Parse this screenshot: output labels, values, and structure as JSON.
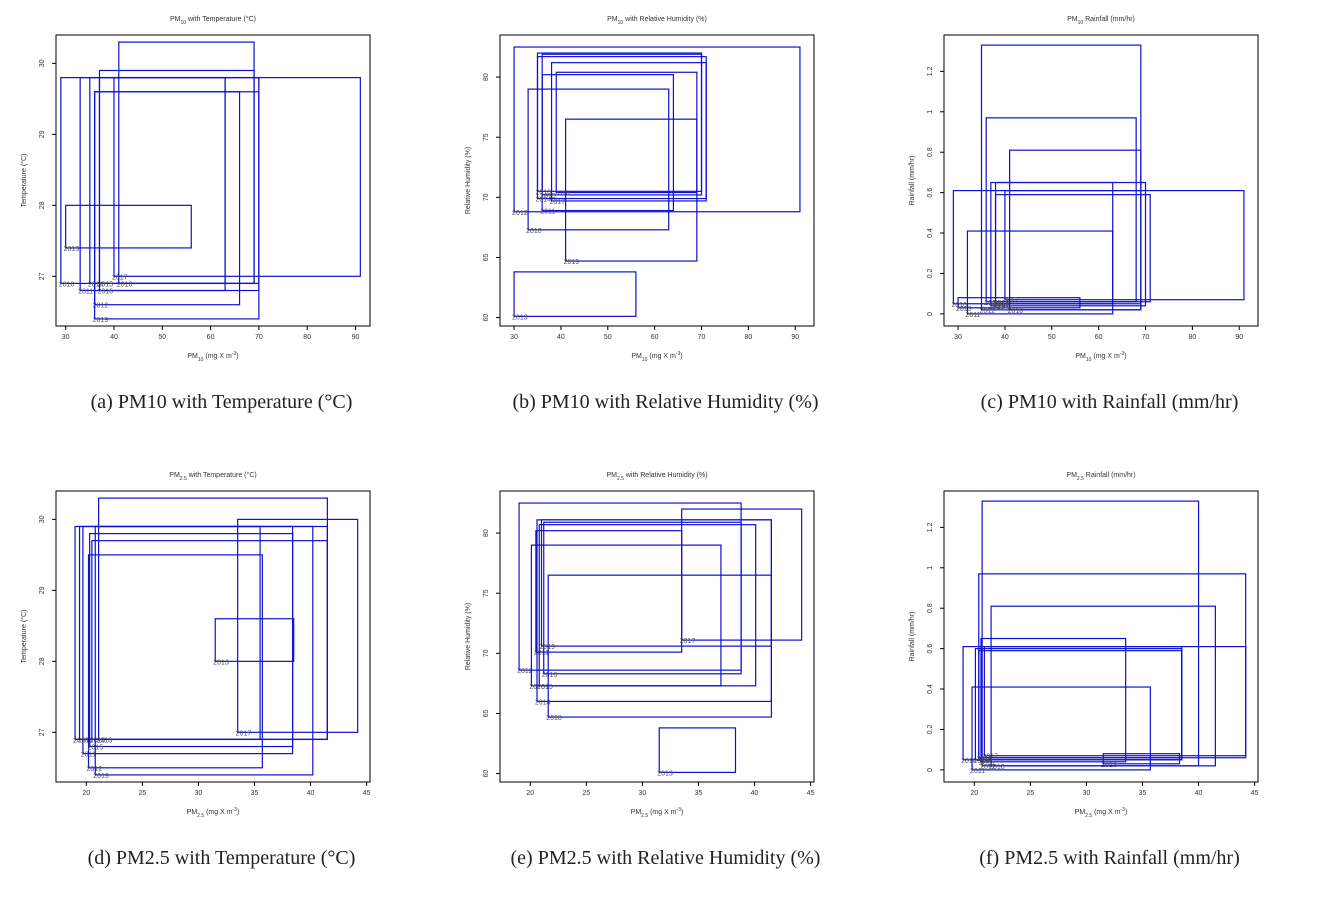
{
  "chart_data": [
    {
      "type": "scatter",
      "title": "PM$_{10}$ with Temperature (°C)",
      "caption": "(a) PM10 with Temperature (°C)",
      "xlabel": "PM$_{10}$ (mg X m$^{-3}$)",
      "ylabel": "Temperature (°C)",
      "xlim": [
        28,
        93
      ],
      "ylim": [
        26.3,
        30.4
      ],
      "xticks": [
        30,
        40,
        50,
        60,
        70,
        80,
        90
      ],
      "yticks": [
        27,
        28,
        29,
        30
      ],
      "series": [
        {
          "label": "2013",
          "x": [
            30,
            56
          ],
          "y": [
            27.4,
            28.0
          ]
        },
        {
          "label": "2010",
          "x": [
            29,
            63
          ],
          "y": [
            26.9,
            29.8
          ]
        },
        {
          "label": "2011",
          "x": [
            33,
            70
          ],
          "y": [
            26.8,
            29.8
          ]
        },
        {
          "label": "2012",
          "x": [
            36,
            66
          ],
          "y": [
            26.6,
            29.6
          ]
        },
        {
          "label": "2014",
          "x": [
            35,
            70
          ],
          "y": [
            26.9,
            29.8
          ]
        },
        {
          "label": "2015",
          "x": [
            37,
            69
          ],
          "y": [
            26.9,
            29.9
          ]
        },
        {
          "label": "2016",
          "x": [
            37,
            63
          ],
          "y": [
            26.8,
            29.8
          ]
        },
        {
          "label": "2017",
          "x": [
            40,
            91
          ],
          "y": [
            27.0,
            29.8
          ]
        },
        {
          "label": "2018",
          "x": [
            41,
            69
          ],
          "y": [
            26.9,
            30.3
          ]
        },
        {
          "label": "2019",
          "x": [
            36,
            70
          ],
          "y": [
            26.4,
            29.6
          ]
        }
      ]
    },
    {
      "type": "scatter",
      "title": "PM$_{10}$ with Relative Humidity (%)",
      "caption": "(b) PM10 with Relative Humidity (%)",
      "xlabel": "PM$_{10}$ (mg X m$^{-3}$)",
      "ylabel": "Relative Humidity (%)",
      "xlim": [
        27,
        94
      ],
      "ylim": [
        59.3,
        83.5
      ],
      "xticks": [
        30,
        40,
        50,
        60,
        70,
        80,
        90
      ],
      "yticks": [
        60,
        65,
        70,
        75,
        80
      ],
      "series": [
        {
          "label": "2013",
          "x": [
            30,
            56
          ],
          "y": [
            60.1,
            63.8
          ]
        },
        {
          "label": "2012",
          "x": [
            30,
            91
          ],
          "y": [
            68.8,
            82.5
          ]
        },
        {
          "label": "2010",
          "x": [
            33,
            63
          ],
          "y": [
            67.3,
            79.0
          ]
        },
        {
          "label": "2011",
          "x": [
            36,
            64
          ],
          "y": [
            68.9,
            80.2
          ]
        },
        {
          "label": "2014",
          "x": [
            35,
            71
          ],
          "y": [
            69.9,
            81.7
          ]
        },
        {
          "label": "2015",
          "x": [
            36,
            70
          ],
          "y": [
            70.2,
            81.9
          ]
        },
        {
          "label": "2016",
          "x": [
            35,
            70
          ],
          "y": [
            70.5,
            82.0
          ]
        },
        {
          "label": "2017",
          "x": [
            38,
            71
          ],
          "y": [
            69.7,
            81.2
          ]
        },
        {
          "label": "2018",
          "x": [
            39,
            69
          ],
          "y": [
            70.4,
            80.4
          ]
        },
        {
          "label": "2019",
          "x": [
            41,
            69
          ],
          "y": [
            64.7,
            76.5
          ]
        }
      ]
    },
    {
      "type": "scatter",
      "title": "PM$_{10}$ Rainfall (mm/hr)",
      "caption": "(c) PM10 with Rainfall (mm/hr)",
      "xlabel": "PM$_{10}$ (mg X m$^{-3}$)",
      "ylabel": "Rainfall (mm/hr)",
      "xlim": [
        27,
        94
      ],
      "ylim": [
        -0.06,
        1.38
      ],
      "xticks": [
        30,
        40,
        50,
        60,
        70,
        80,
        90
      ],
      "yticks": [
        0.0,
        0.2,
        0.4,
        0.6,
        0.8,
        1.0,
        1.2
      ],
      "series": [
        {
          "label": "2010",
          "x": [
            29,
            69
          ],
          "y": [
            0.05,
            0.61
          ]
        },
        {
          "label": "2011",
          "x": [
            32,
            63
          ],
          "y": [
            0.0,
            0.41
          ]
        },
        {
          "label": "2012",
          "x": [
            35,
            69
          ],
          "y": [
            0.02,
            1.33
          ]
        },
        {
          "label": "2013",
          "x": [
            30,
            56
          ],
          "y": [
            0.03,
            0.08
          ]
        },
        {
          "label": "2014",
          "x": [
            36,
            68
          ],
          "y": [
            0.06,
            0.97
          ]
        },
        {
          "label": "2015",
          "x": [
            37,
            70
          ],
          "y": [
            0.04,
            0.65
          ]
        },
        {
          "label": "2016",
          "x": [
            38,
            63
          ],
          "y": [
            0.05,
            0.65
          ]
        },
        {
          "label": "2017",
          "x": [
            40,
            91
          ],
          "y": [
            0.07,
            0.61
          ]
        },
        {
          "label": "2018",
          "x": [
            41,
            69
          ],
          "y": [
            0.02,
            0.81
          ]
        },
        {
          "label": "2019",
          "x": [
            38,
            71
          ],
          "y": [
            0.06,
            0.59
          ]
        }
      ]
    },
    {
      "type": "scatter",
      "title": "PM$_{2.5}$ with Temperature (°C)",
      "caption": "(d) PM2.5 with Temperature (°C)",
      "xlabel": "PM$_{2.5}$ (mg X m$^{-3}$)",
      "ylabel": "Temperature (°C)",
      "xlim": [
        17.3,
        45.3
      ],
      "ylim": [
        26.3,
        30.4
      ],
      "xticks": [
        20,
        25,
        30,
        35,
        40,
        45
      ],
      "yticks": [
        27,
        28,
        29,
        30
      ],
      "series": [
        {
          "label": "2013",
          "x": [
            31.5,
            38.5
          ],
          "y": [
            28.0,
            28.6
          ]
        },
        {
          "label": "2010",
          "x": [
            19,
            35.5
          ],
          "y": [
            26.9,
            29.9
          ]
        },
        {
          "label": "2011",
          "x": [
            19.7,
            38.4
          ],
          "y": [
            26.7,
            29.9
          ]
        },
        {
          "label": "2012",
          "x": [
            20.2,
            35.7
          ],
          "y": [
            26.5,
            29.5
          ]
        },
        {
          "label": "2014",
          "x": [
            19.4,
            41.5
          ],
          "y": [
            26.9,
            29.9
          ]
        },
        {
          "label": "2015",
          "x": [
            20.3,
            38.4
          ],
          "y": [
            26.8,
            29.8
          ]
        },
        {
          "label": "2016",
          "x": [
            20.5,
            41.5
          ],
          "y": [
            26.9,
            29.7
          ]
        },
        {
          "label": "2017",
          "x": [
            33.5,
            44.2
          ],
          "y": [
            27.0,
            30.0
          ]
        },
        {
          "label": "2018",
          "x": [
            21.1,
            41.5
          ],
          "y": [
            26.9,
            30.3
          ]
        },
        {
          "label": "2019",
          "x": [
            20.8,
            40.2
          ],
          "y": [
            26.4,
            29.9
          ]
        }
      ]
    },
    {
      "type": "scatter",
      "title": "PM$_{2.5}$ with Relative Humidity (%)",
      "caption": "(e) PM2.5 with Relative Humidity (%)",
      "xlabel": "PM$_{2.5}$ (mg X m$^{-3}$)",
      "ylabel": "Relative Humidity (%)",
      "xlim": [
        17.3,
        45.3
      ],
      "ylim": [
        59.3,
        83.5
      ],
      "xticks": [
        20,
        25,
        30,
        35,
        40,
        45
      ],
      "yticks": [
        60,
        65,
        70,
        75,
        80
      ],
      "series": [
        {
          "label": "2013",
          "x": [
            31.5,
            38.3
          ],
          "y": [
            60.1,
            63.8
          ]
        },
        {
          "label": "2012",
          "x": [
            19,
            38.8
          ],
          "y": [
            68.6,
            82.5
          ]
        },
        {
          "label": "2010",
          "x": [
            20.1,
            37
          ],
          "y": [
            67.3,
            79.0
          ]
        },
        {
          "label": "2011",
          "x": [
            20.5,
            33.5
          ],
          "y": [
            70.1,
            80.2
          ]
        },
        {
          "label": "2014",
          "x": [
            20.6,
            41.5
          ],
          "y": [
            66.0,
            81.1
          ]
        },
        {
          "label": "2015",
          "x": [
            20.8,
            40.1
          ],
          "y": [
            67.3,
            80.7
          ]
        },
        {
          "label": "2016",
          "x": [
            21.2,
            38.8
          ],
          "y": [
            68.3,
            80.9
          ]
        },
        {
          "label": "2017",
          "x": [
            33.5,
            44.2
          ],
          "y": [
            71.1,
            82.0
          ]
        },
        {
          "label": "2018",
          "x": [
            21.6,
            41.5
          ],
          "y": [
            64.7,
            76.5
          ]
        },
        {
          "label": "2019",
          "x": [
            21.0,
            41.5
          ],
          "y": [
            70.6,
            81.1
          ]
        }
      ]
    },
    {
      "type": "scatter",
      "title": "PM$_{2.5}$ Rainfall (mm/hr)",
      "caption": "(f) PM2.5 with Rainfall (mm/hr)",
      "xlabel": "PM$_{2.5}$ (mg X m$^{-3}$)",
      "ylabel": "Rainfall (mm/hr)",
      "xlim": [
        17.3,
        45.3
      ],
      "ylim": [
        -0.06,
        1.38
      ],
      "xticks": [
        20,
        25,
        30,
        35,
        40,
        45
      ],
      "yticks": [
        0.0,
        0.2,
        0.4,
        0.6,
        0.8,
        1.0,
        1.2
      ],
      "series": [
        {
          "label": "2010",
          "x": [
            19,
            38.5
          ],
          "y": [
            0.05,
            0.61
          ]
        },
        {
          "label": "2011",
          "x": [
            19.8,
            35.7
          ],
          "y": [
            0.0,
            0.41
          ]
        },
        {
          "label": "2012",
          "x": [
            20.7,
            40
          ],
          "y": [
            0.02,
            1.33
          ]
        },
        {
          "label": "2013",
          "x": [
            31.5,
            38.3
          ],
          "y": [
            0.03,
            0.08
          ]
        },
        {
          "label": "2014",
          "x": [
            20.4,
            44.2
          ],
          "y": [
            0.06,
            0.97
          ]
        },
        {
          "label": "2015",
          "x": [
            20.6,
            33.5
          ],
          "y": [
            0.04,
            0.65
          ]
        },
        {
          "label": "2016",
          "x": [
            20.1,
            38.5
          ],
          "y": [
            0.05,
            0.6
          ]
        },
        {
          "label": "2017",
          "x": [
            20.9,
            44.2
          ],
          "y": [
            0.07,
            0.61
          ]
        },
        {
          "label": "2018",
          "x": [
            21.5,
            41.5
          ],
          "y": [
            0.02,
            0.81
          ]
        },
        {
          "label": "2019",
          "x": [
            20.4,
            38.5
          ],
          "y": [
            0.06,
            0.59
          ]
        }
      ]
    }
  ],
  "style": {
    "box_color": "#1010d0",
    "axis_color": "#000000"
  }
}
